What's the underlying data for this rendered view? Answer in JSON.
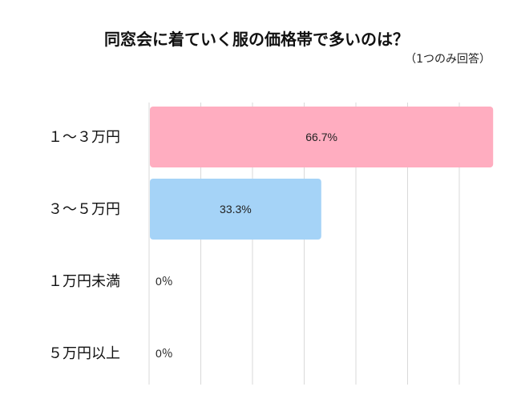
{
  "chart_data": {
    "type": "bar",
    "orientation": "horizontal",
    "title": "同窓会に着ていく服の価格帯で多いのは？",
    "subtitle": "（1つのみ回答）",
    "categories": [
      "１～３万円",
      "３～５万円",
      "１万円未満",
      "５万円以上"
    ],
    "values": [
      66.7,
      33.3,
      0,
      0
    ],
    "value_labels": [
      "66.7%",
      "33.3%",
      "0％",
      "0％"
    ],
    "bar_colors": [
      "#ffadc0",
      "#a5d3f7",
      "#ffffff",
      "#ffffff"
    ],
    "xlim": [
      0,
      100
    ],
    "grid": true,
    "legend": "none",
    "xlabel": "",
    "ylabel": ""
  }
}
